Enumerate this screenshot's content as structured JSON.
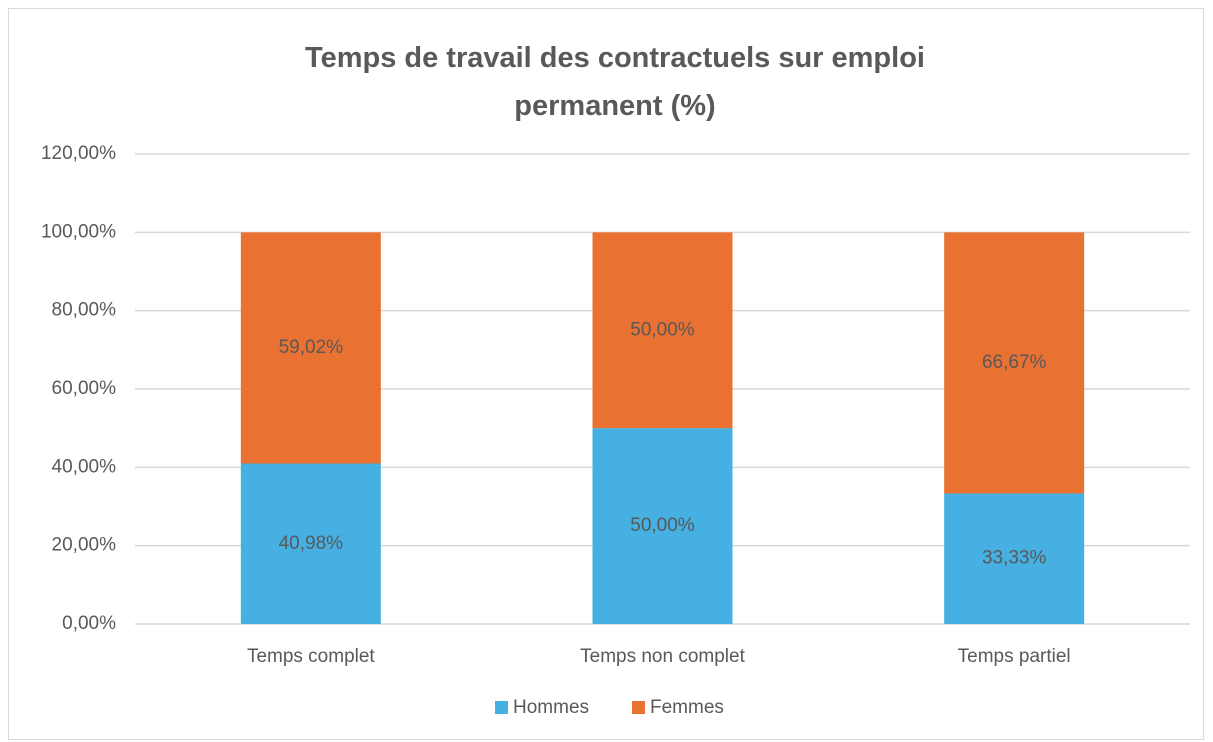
{
  "chart_data": {
    "type": "stacked_bar",
    "title": "Temps de travail des contractuels sur emploi permanent (%)",
    "categories": [
      "Temps complet",
      "Temps non complet",
      "Temps partiel"
    ],
    "series": [
      {
        "name": "Hommes",
        "color": "#45b0e1",
        "values": [
          40.98,
          50,
          33.33
        ],
        "value_labels": [
          "40,98%",
          "50,00%",
          "33,33%"
        ]
      },
      {
        "name": "Femmes",
        "color": "#e97132",
        "values": [
          59.02,
          50,
          66.67
        ],
        "value_labels": [
          "59,02%",
          "50,00%",
          "66,67%"
        ]
      }
    ],
    "ylim": [
      0,
      120
    ],
    "yticks": [
      {
        "value": 0,
        "label": "0,00%"
      },
      {
        "value": 20,
        "label": "20,00%"
      },
      {
        "value": 40,
        "label": "40,00%"
      },
      {
        "value": 60,
        "label": "60,00%"
      },
      {
        "value": 80,
        "label": "80,00%"
      },
      {
        "value": 100,
        "label": "100,00%"
      },
      {
        "value": 120,
        "label": "120,00%"
      }
    ],
    "grid": true,
    "legend": "bottom"
  }
}
